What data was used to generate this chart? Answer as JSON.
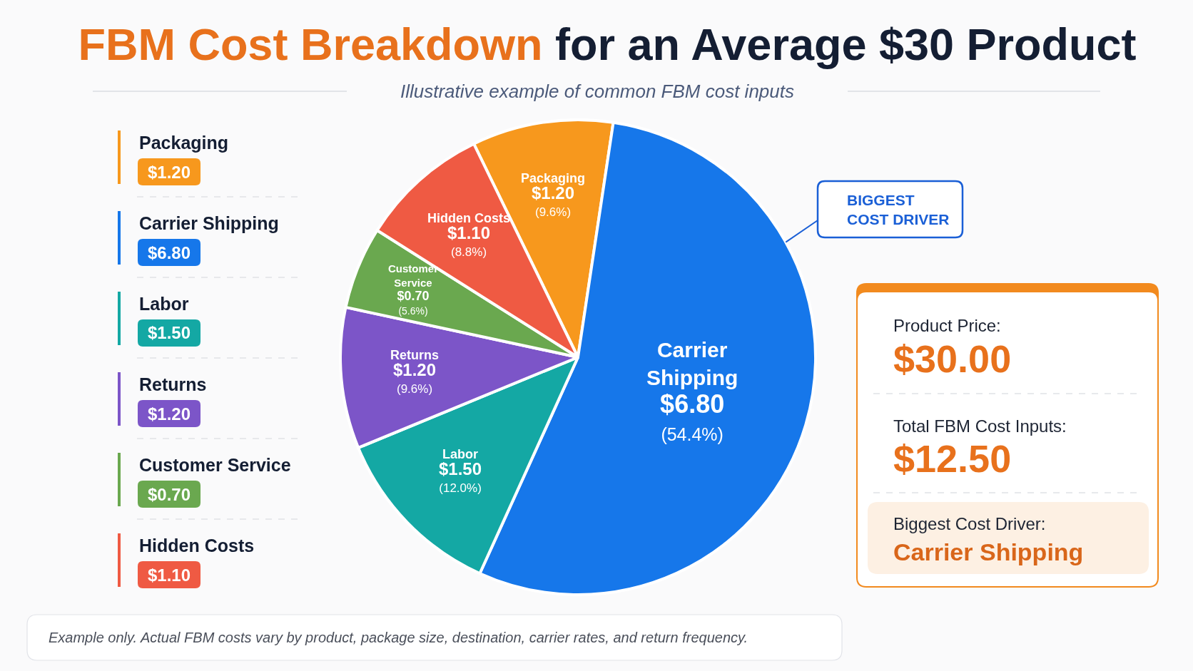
{
  "chart_data": {
    "type": "pie",
    "title": "FBM Cost Breakdown for an Average $30 Product",
    "subtitle": "Illustrative example of common FBM cost inputs",
    "categories": [
      "Packaging",
      "Carrier Shipping",
      "Labor",
      "Returns",
      "Customer Service",
      "Hidden Costs"
    ],
    "values": [
      1.2,
      6.8,
      1.5,
      1.2,
      0.7,
      1.1
    ],
    "colors": [
      "#f7981d",
      "#1677ea",
      "#14a8a4",
      "#7c55c8",
      "#6aa84f",
      "#ef5a43"
    ],
    "value_labels": [
      "$1.20\n(9.6%)",
      "$6.80\n(54.4%)",
      "$1.50\n(12.0%)",
      "$1.20\n(9.6%)",
      "$0.70\n(5.6%)",
      "$1.10\n(8.8%)"
    ],
    "annotations": [
      "BIGGEST\nCOST DRIVER",
      "Product Price:",
      "$30.00",
      "Total FBM Cost Inputs:",
      "$12.50",
      "Biggest Cost Driver:",
      "Carrier Shipping",
      "Example only. Actual FBM costs vary by product, package size, destination, carrier rates, and return frequency.",
      "$1.20",
      "$6.80",
      "$1.50",
      "$1.20",
      "$0.70",
      "$1.10"
    ]
  }
}
